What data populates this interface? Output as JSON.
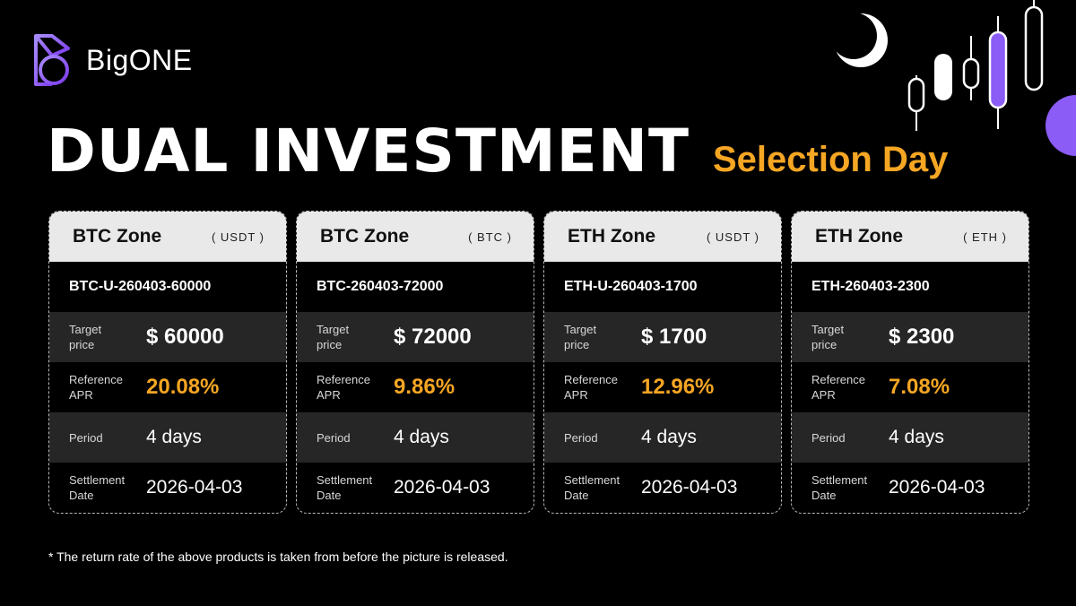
{
  "brand": {
    "name": "BigONE"
  },
  "headline": {
    "title": "DUAL INVESTMENT",
    "subtitle": "Selection Day"
  },
  "colors": {
    "accent": "#f5a623",
    "brand_purple": "#8b5cf6",
    "card_header_bg": "#e9e9e9",
    "row_alt_bg": "#262626"
  },
  "icons": [
    "bigone-logo-icon",
    "candlestick-decoration-icon",
    "crescent-moon-icon",
    "purple-circle-icon"
  ],
  "labels": {
    "target_price": [
      "Target",
      "price"
    ],
    "reference_apr": [
      "Reference",
      "APR"
    ],
    "period": [
      "Period"
    ],
    "settlement_date": [
      "Settlement",
      "Date"
    ]
  },
  "cards": [
    {
      "zone": "BTC Zone",
      "unit": "( USDT )",
      "product": "BTC-U-260403-60000",
      "target_price": "$ 60000",
      "apr": "20.08%",
      "period": "4 days",
      "settlement": "2026-04-03"
    },
    {
      "zone": "BTC Zone",
      "unit": "( BTC )",
      "product": "BTC-260403-72000",
      "target_price": "$ 72000",
      "apr": "9.86%",
      "period": "4 days",
      "settlement": "2026-04-03"
    },
    {
      "zone": "ETH Zone",
      "unit": "( USDT )",
      "product": "ETH-U-260403-1700",
      "target_price": "$ 1700",
      "apr": "12.96%",
      "period": "4 days",
      "settlement": "2026-04-03"
    },
    {
      "zone": "ETH Zone",
      "unit": "( ETH )",
      "product": "ETH-260403-2300",
      "target_price": "$ 2300",
      "apr": "7.08%",
      "period": "4 days",
      "settlement": "2026-04-03"
    }
  ],
  "footnote": "*  The return rate of the above products is taken from before the picture is released."
}
